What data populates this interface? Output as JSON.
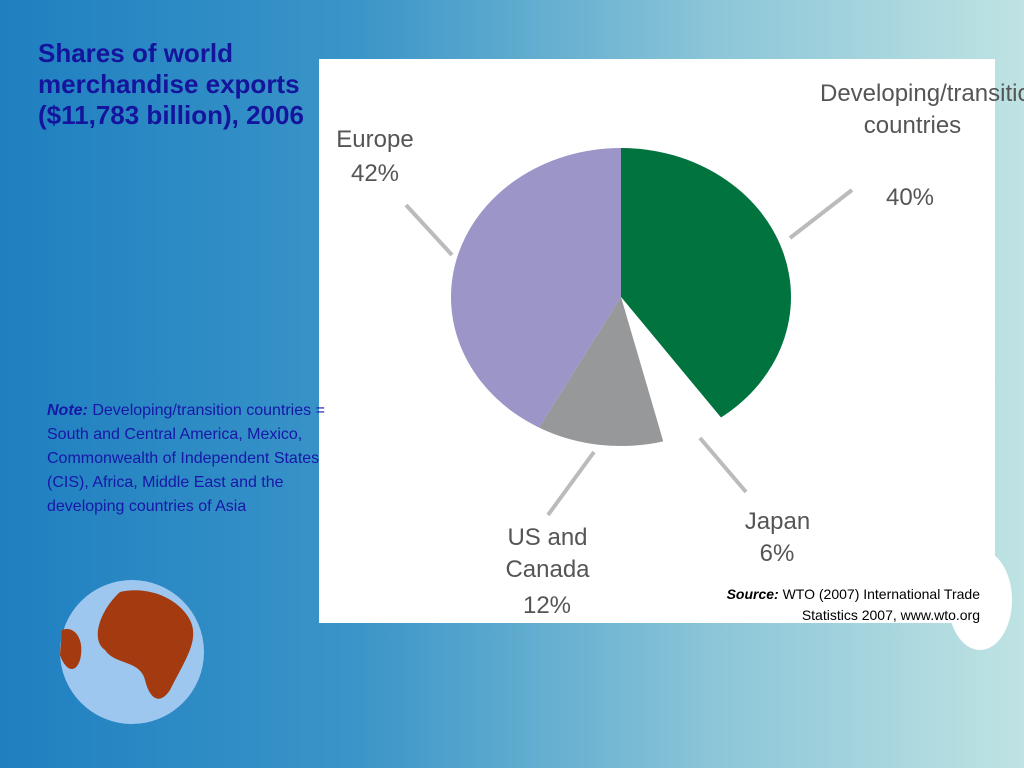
{
  "chart_data": {
    "type": "pie",
    "title": "Shares of world merchandise exports ($11,783  billion), 2006",
    "categories": [
      "Developing/transition countries",
      "Japan",
      "US and Canada",
      "Europe"
    ],
    "values": [
      40,
      6,
      12,
      42
    ],
    "value_labels": [
      "40%",
      "6%",
      "12%",
      "42%"
    ],
    "colors": [
      "#00733f",
      "#ffffff",
      "#97989a",
      "#9b95c8"
    ]
  },
  "note": {
    "label": "Note:",
    "text": "Developing/transition countries = South and Central America, Mexico, Commonwealth of Independent States (CIS), Africa, Middle East and the developing countries of Asia"
  },
  "source": {
    "label": "Source:",
    "text": "WTO (2007) International Trade Statistics 2007, www.wto.org"
  }
}
